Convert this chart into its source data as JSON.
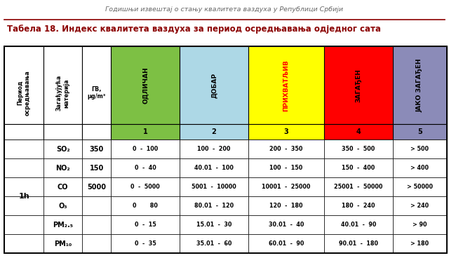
{
  "title_top": "Годишњи извештај о стању квалитета ваздуха у Републици Србији",
  "title_main": "Табела 18. Индекс квалитета ваздуха за период осредњавања одједног сата",
  "period_label": "1h",
  "pollutants": [
    "SO₂",
    "NO₂",
    "CO",
    "O₃",
    "PM₂.₅",
    "PM₁₀"
  ],
  "gv_values": [
    "350",
    "150",
    "5000",
    "",
    "",
    ""
  ],
  "col1_values": [
    "0  -  100",
    "0  -  40",
    "0  -  5000",
    "0       80",
    "0  -  15",
    "0  -  35"
  ],
  "col2_values": [
    "100  -  200",
    "40.01  -  100",
    "5001  -  10000",
    "80.01  -  120",
    "15.01  -  30",
    "35.01  -  60"
  ],
  "col3_values": [
    "200  -  350",
    "100  -  150",
    "10001  -  25000",
    "120  -  180",
    "30.01  -  40",
    "60.01  -  90"
  ],
  "col4_values": [
    "350  -  500",
    "150  -  400",
    "25001  -  50000",
    "180  -  240",
    "40.01  -  90",
    "90.01  -  180"
  ],
  "col5_values": [
    "> 500",
    "> 400",
    "> 50000",
    "> 240",
    "> 90",
    "> 180"
  ],
  "header_labels_colored": [
    "ОДЛИЧАН",
    "ДОБАР",
    "ПРИХВАТЉИВ",
    "ЗАГАЂЕН",
    "ЈАКО ЗАГАЂЕН"
  ],
  "color_green": "#7DC044",
  "color_lightblue": "#ADD8E6",
  "color_yellow": "#FFFF00",
  "color_red": "#FF0000",
  "color_purple": "#8B8BB8",
  "border_color": "#000000",
  "title_color": "#8B0000",
  "top_title_color": "#666666",
  "bg_color": "#FFFFFF"
}
